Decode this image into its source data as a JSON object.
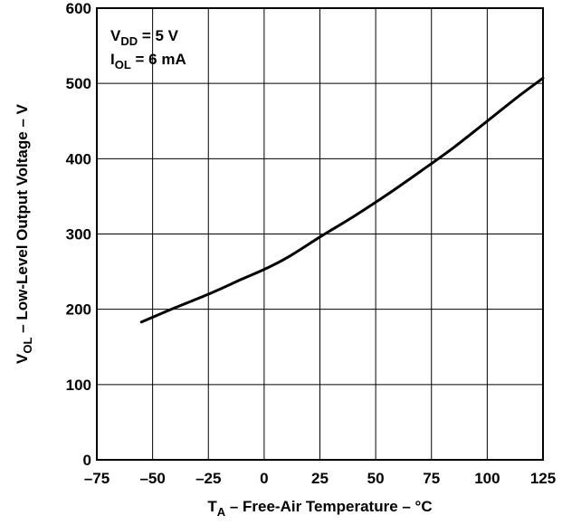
{
  "chart_data": {
    "type": "line",
    "title": "",
    "xlabel": {
      "main": "T",
      "sub": "A",
      "rest": " – Free-Air Temperature – °C"
    },
    "ylabel": {
      "main": "V",
      "sub": "OL",
      "rest": " – Low-Level Output Voltage – V"
    },
    "xlim": [
      -75,
      125
    ],
    "ylim": [
      0,
      600
    ],
    "x_ticks": [
      "–75",
      "–50",
      "–25",
      "0",
      "25",
      "50",
      "75",
      "100",
      "125"
    ],
    "y_ticks": [
      "0",
      "100",
      "200",
      "300",
      "400",
      "500",
      "600"
    ],
    "grid": true,
    "annotations": [
      {
        "main": "V",
        "sub": "DD",
        "rest": " = 5 V"
      },
      {
        "main": "I",
        "sub": "OL",
        "rest": " = 6 mA"
      }
    ],
    "series": [
      {
        "x": [
          -55,
          -40,
          -25,
          -10,
          0,
          10,
          25,
          40,
          55,
          70,
          85,
          100,
          115,
          125
        ],
        "y": [
          183,
          202,
          220,
          240,
          253,
          268,
          296,
          323,
          352,
          383,
          415,
          450,
          485,
          507
        ]
      }
    ]
  }
}
